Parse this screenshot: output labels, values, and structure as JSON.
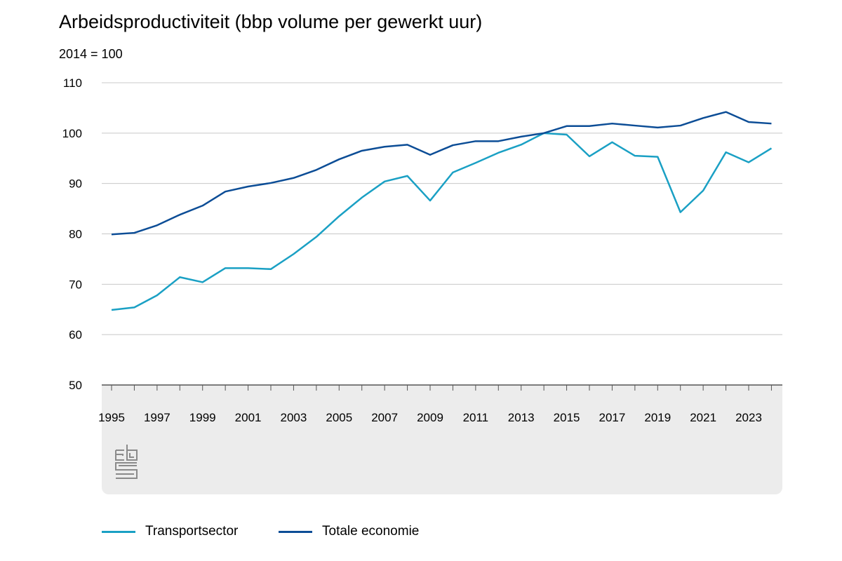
{
  "chart_data": {
    "type": "line",
    "title": "Arbeidsproductiviteit (bbp volume per gewerkt uur)",
    "subtitle": "2014 = 100",
    "xlabel": "",
    "ylabel": "",
    "x": [
      1995,
      1996,
      1997,
      1998,
      1999,
      2000,
      2001,
      2002,
      2003,
      2004,
      2005,
      2006,
      2007,
      2008,
      2009,
      2010,
      2011,
      2012,
      2013,
      2014,
      2015,
      2016,
      2017,
      2018,
      2019,
      2020,
      2021,
      2022,
      2023,
      2024
    ],
    "x_tick_labels": [
      "1995",
      "1997",
      "1999",
      "2001",
      "2003",
      "2005",
      "2007",
      "2009",
      "2011",
      "2013",
      "2015",
      "2017",
      "2019",
      "2021",
      "2023"
    ],
    "y_tick_labels": [
      "50",
      "60",
      "70",
      "80",
      "90",
      "100",
      "110"
    ],
    "ylim": [
      50,
      110
    ],
    "grid": "horizontal",
    "legend": "bottom",
    "series": [
      {
        "name": "Transportsector",
        "color": "#1aa0c4",
        "values": [
          64.9,
          65.4,
          67.8,
          71.4,
          70.4,
          73.2,
          73.2,
          73.0,
          76.0,
          79.4,
          83.5,
          87.2,
          90.4,
          91.5,
          86.6,
          92.2,
          94.1,
          96.1,
          97.7,
          100.0,
          99.7,
          95.4,
          98.2,
          95.5,
          95.3,
          84.3,
          88.6,
          96.2,
          94.2,
          97.0
        ]
      },
      {
        "name": "Totale economie",
        "color": "#0c4d96",
        "values": [
          79.9,
          80.2,
          81.7,
          83.8,
          85.6,
          88.4,
          89.4,
          90.1,
          91.1,
          92.7,
          94.8,
          96.5,
          97.3,
          97.7,
          95.7,
          97.6,
          98.4,
          98.4,
          99.3,
          100.0,
          101.4,
          101.4,
          101.9,
          101.5,
          101.1,
          101.5,
          103.0,
          104.2,
          102.2,
          101.9
        ]
      }
    ]
  },
  "logo": {
    "text": "cbs",
    "icon": "cbs-logo"
  }
}
